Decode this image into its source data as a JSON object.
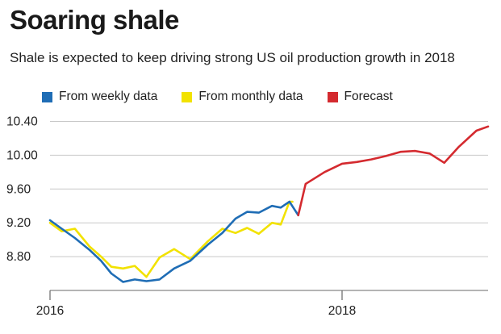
{
  "title": "Soaring shale",
  "subtitle": "Shale is expected to keep driving strong US oil production growth in 2018",
  "legend": [
    {
      "label": "From weekly data",
      "color": "#1f6db5"
    },
    {
      "label": "From monthly data",
      "color": "#f2e200"
    },
    {
      "label": "Forecast",
      "color": "#d42a2f"
    }
  ],
  "chart_data": {
    "type": "line",
    "title": "Soaring shale",
    "subtitle": "Shale is expected to keep driving strong US oil production growth in 2018",
    "xlabel": "",
    "ylabel": "",
    "x_range": [
      2016.0,
      2019.0
    ],
    "ylim": [
      8.4,
      10.5
    ],
    "x_ticks": [
      2016,
      2018
    ],
    "x_tick_labels": [
      "2016",
      "2018"
    ],
    "y_ticks": [
      8.8,
      9.2,
      9.6,
      10.0,
      10.4
    ],
    "y_tick_labels": [
      "8.80",
      "9.20",
      "9.60",
      "10.00",
      "10.40"
    ],
    "grid": "horizontal",
    "legend_position": "top-left",
    "series": [
      {
        "name": "From weekly data",
        "color": "#1f6db5",
        "x": [
          2016.0,
          2016.08,
          2016.17,
          2016.27,
          2016.35,
          2016.42,
          2016.5,
          2016.58,
          2016.66,
          2016.75,
          2016.85,
          2016.96,
          2017.08,
          2017.18,
          2017.27,
          2017.35,
          2017.43,
          2017.52,
          2017.58,
          2017.64,
          2017.7
        ],
        "y": [
          9.23,
          9.13,
          9.02,
          8.88,
          8.75,
          8.6,
          8.5,
          8.53,
          8.51,
          8.53,
          8.66,
          8.75,
          8.94,
          9.08,
          9.25,
          9.33,
          9.32,
          9.4,
          9.38,
          9.45,
          9.29
        ]
      },
      {
        "name": "From monthly data",
        "color": "#f2e200",
        "x": [
          2016.0,
          2016.08,
          2016.17,
          2016.27,
          2016.35,
          2016.42,
          2016.5,
          2016.58,
          2016.66,
          2016.75,
          2016.85,
          2016.96,
          2017.08,
          2017.18,
          2017.27,
          2017.35,
          2017.43,
          2017.52,
          2017.58,
          2017.64,
          2017.66
        ],
        "y": [
          9.2,
          9.1,
          9.13,
          8.92,
          8.8,
          8.68,
          8.66,
          8.69,
          8.56,
          8.79,
          8.89,
          8.77,
          8.98,
          9.13,
          9.08,
          9.14,
          9.07,
          9.2,
          9.18,
          9.45,
          9.45
        ]
      },
      {
        "name": "Forecast",
        "color": "#d42a2f",
        "x": [
          2017.7,
          2017.75,
          2017.88,
          2018.0,
          2018.1,
          2018.2,
          2018.3,
          2018.4,
          2018.5,
          2018.6,
          2018.7,
          2018.8,
          2018.92,
          2019.0
        ],
        "y": [
          9.29,
          9.66,
          9.8,
          9.9,
          9.92,
          9.95,
          9.99,
          10.04,
          10.05,
          10.02,
          9.91,
          10.1,
          10.29,
          10.34
        ]
      }
    ]
  }
}
